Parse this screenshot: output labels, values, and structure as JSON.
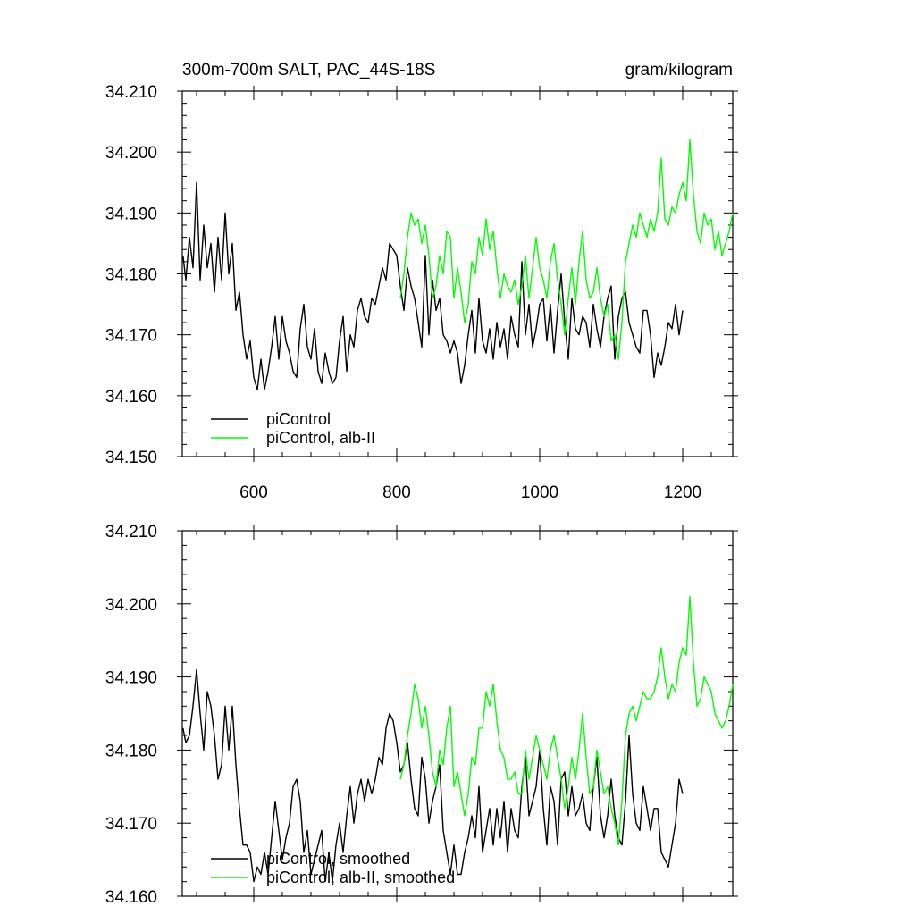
{
  "header": {
    "title": "300m-700m SALT, PAC_44S-18S",
    "units": "gram/kilogram"
  },
  "chart_data": [
    {
      "type": "line",
      "xlim": [
        500,
        1270
      ],
      "ylim": [
        34.15,
        34.21
      ],
      "x_ticks": [
        600,
        800,
        1000,
        1200
      ],
      "x_tick_labels": [
        "600",
        "800",
        "1000",
        "1200"
      ],
      "y_ticks": [
        34.15,
        34.16,
        34.17,
        34.18,
        34.19,
        34.2,
        34.21
      ],
      "y_tick_labels": [
        "34.150",
        "34.160",
        "34.170",
        "34.180",
        "34.190",
        "34.200",
        "34.210"
      ],
      "grid": false,
      "legend": "bottom-left",
      "series": [
        {
          "name": "piControl",
          "color": "#000000",
          "x": [
            501,
            505,
            510,
            515,
            520,
            525,
            530,
            535,
            540,
            545,
            550,
            555,
            560,
            565,
            570,
            575,
            580,
            585,
            590,
            595,
            600,
            605,
            610,
            615,
            620,
            625,
            630,
            635,
            640,
            645,
            650,
            655,
            660,
            665,
            670,
            675,
            680,
            685,
            690,
            695,
            700,
            705,
            710,
            715,
            720,
            725,
            730,
            735,
            740,
            745,
            750,
            755,
            760,
            765,
            770,
            775,
            780,
            785,
            790,
            795,
            800,
            805,
            810,
            815,
            820,
            825,
            830,
            835,
            840,
            845,
            850,
            855,
            860,
            865,
            870,
            875,
            880,
            885,
            890,
            895,
            900,
            905,
            910,
            915,
            920,
            925,
            930,
            935,
            940,
            945,
            950,
            955,
            960,
            965,
            970,
            975,
            980,
            985,
            990,
            995,
            1000,
            1005,
            1010,
            1015,
            1020,
            1025,
            1030,
            1035,
            1040,
            1045,
            1050,
            1055,
            1060,
            1065,
            1070,
            1075,
            1080,
            1085,
            1090,
            1095,
            1100,
            1105,
            1110,
            1115,
            1120,
            1125,
            1130,
            1135,
            1140,
            1145,
            1150,
            1155,
            1160,
            1165,
            1170,
            1175,
            1180,
            1185,
            1190,
            1195,
            1200
          ],
          "y": [
            34.183,
            34.179,
            34.186,
            34.181,
            34.195,
            34.179,
            34.188,
            34.181,
            34.185,
            34.177,
            34.186,
            34.179,
            34.19,
            34.18,
            34.185,
            34.174,
            34.177,
            34.17,
            34.166,
            34.169,
            34.163,
            34.161,
            34.166,
            34.161,
            34.164,
            34.168,
            34.173,
            34.166,
            34.173,
            34.169,
            34.167,
            34.164,
            34.163,
            34.171,
            34.175,
            34.168,
            34.166,
            34.171,
            34.164,
            34.162,
            34.167,
            34.164,
            34.162,
            34.163,
            34.169,
            34.173,
            34.164,
            34.17,
            34.168,
            34.174,
            34.176,
            34.173,
            34.172,
            34.176,
            34.175,
            34.178,
            34.181,
            34.179,
            34.185,
            34.184,
            34.183,
            34.178,
            34.174,
            34.181,
            34.178,
            34.176,
            34.172,
            34.168,
            34.183,
            34.17,
            34.179,
            34.174,
            34.176,
            34.17,
            34.169,
            34.167,
            34.169,
            34.167,
            34.162,
            34.165,
            34.17,
            34.174,
            34.167,
            34.176,
            34.169,
            34.167,
            34.171,
            34.166,
            34.172,
            34.168,
            34.171,
            34.166,
            34.173,
            34.17,
            34.168,
            34.182,
            34.17,
            34.175,
            34.168,
            34.171,
            34.175,
            34.176,
            34.169,
            34.175,
            34.167,
            34.174,
            34.18,
            34.172,
            34.166,
            34.176,
            34.171,
            34.17,
            34.173,
            34.172,
            34.168,
            34.175,
            34.171,
            34.168,
            34.173,
            34.176,
            34.178,
            34.166,
            34.173,
            34.176,
            34.177,
            34.172,
            34.17,
            34.168,
            34.167,
            34.174,
            34.174,
            34.17,
            34.163,
            34.167,
            34.165,
            34.168,
            34.172,
            34.171,
            34.175,
            34.17,
            34.174
          ],
          "label": "piControl"
        },
        {
          "name": "piControl, alb-II",
          "color": "#00ff00",
          "x": [
            805,
            810,
            815,
            820,
            825,
            830,
            835,
            840,
            845,
            850,
            855,
            860,
            865,
            870,
            875,
            880,
            885,
            890,
            895,
            900,
            905,
            910,
            915,
            920,
            925,
            930,
            935,
            940,
            945,
            950,
            955,
            960,
            965,
            970,
            975,
            980,
            985,
            990,
            995,
            1000,
            1005,
            1010,
            1015,
            1020,
            1025,
            1030,
            1035,
            1040,
            1045,
            1050,
            1055,
            1060,
            1065,
            1070,
            1075,
            1080,
            1085,
            1090,
            1095,
            1100,
            1105,
            1110,
            1115,
            1120,
            1125,
            1130,
            1135,
            1140,
            1145,
            1150,
            1155,
            1160,
            1165,
            1170,
            1175,
            1180,
            1185,
            1190,
            1195,
            1200,
            1205,
            1210,
            1215,
            1220,
            1225,
            1230,
            1235,
            1240,
            1245,
            1250,
            1255,
            1260,
            1265,
            1270
          ],
          "y": [
            34.176,
            34.18,
            34.186,
            34.19,
            34.188,
            34.189,
            34.185,
            34.188,
            34.183,
            34.176,
            34.178,
            34.183,
            34.18,
            34.187,
            34.186,
            34.176,
            34.181,
            34.177,
            34.172,
            34.175,
            34.182,
            34.18,
            34.186,
            34.183,
            34.189,
            34.184,
            34.187,
            34.181,
            34.176,
            34.18,
            34.178,
            34.177,
            34.179,
            34.175,
            34.178,
            34.183,
            34.176,
            34.181,
            34.186,
            34.181,
            34.179,
            34.176,
            34.182,
            34.185,
            34.179,
            34.175,
            34.17,
            34.176,
            34.181,
            34.175,
            34.182,
            34.187,
            34.179,
            34.176,
            34.177,
            34.181,
            34.176,
            34.173,
            34.175,
            34.169,
            34.17,
            34.166,
            34.172,
            34.182,
            34.185,
            34.188,
            34.186,
            34.19,
            34.188,
            34.186,
            34.189,
            34.187,
            34.19,
            34.199,
            34.189,
            34.188,
            34.191,
            34.19,
            34.193,
            34.195,
            34.192,
            34.202,
            34.193,
            34.187,
            34.185,
            34.19,
            34.188,
            34.189,
            34.184,
            34.187,
            34.183,
            34.185,
            34.187,
            34.19
          ],
          "label": "piControl, alb-II"
        }
      ]
    },
    {
      "type": "line",
      "xlim": [
        500,
        1270
      ],
      "ylim": [
        34.16,
        34.21
      ],
      "x_ticks": [
        600,
        800,
        1000,
        1200
      ],
      "y_ticks": [
        34.16,
        34.17,
        34.18,
        34.19,
        34.2,
        34.21
      ],
      "y_tick_labels": [
        "34.160",
        "34.170",
        "34.180",
        "34.190",
        "34.200",
        "34.210"
      ],
      "grid": false,
      "legend": "bottom-left",
      "series": [
        {
          "name": "piControl, smoothed",
          "color": "#000000",
          "x": [
            501,
            505,
            510,
            515,
            520,
            525,
            530,
            535,
            540,
            545,
            550,
            555,
            560,
            565,
            570,
            575,
            580,
            585,
            590,
            595,
            600,
            605,
            610,
            615,
            620,
            625,
            630,
            635,
            640,
            645,
            650,
            655,
            660,
            665,
            670,
            675,
            680,
            685,
            690,
            695,
            700,
            705,
            710,
            715,
            720,
            725,
            730,
            735,
            740,
            745,
            750,
            755,
            760,
            765,
            770,
            775,
            780,
            785,
            790,
            795,
            800,
            805,
            810,
            815,
            820,
            825,
            830,
            835,
            840,
            845,
            850,
            855,
            860,
            865,
            870,
            875,
            880,
            885,
            890,
            895,
            900,
            905,
            910,
            915,
            920,
            925,
            930,
            935,
            940,
            945,
            950,
            955,
            960,
            965,
            970,
            975,
            980,
            985,
            990,
            995,
            1000,
            1005,
            1010,
            1015,
            1020,
            1025,
            1030,
            1035,
            1040,
            1045,
            1050,
            1055,
            1060,
            1065,
            1070,
            1075,
            1080,
            1085,
            1090,
            1095,
            1100,
            1105,
            1110,
            1115,
            1120,
            1125,
            1130,
            1135,
            1140,
            1145,
            1150,
            1155,
            1160,
            1165,
            1170,
            1175,
            1180,
            1185,
            1190,
            1195,
            1200
          ],
          "y": [
            34.183,
            34.181,
            34.182,
            34.186,
            34.191,
            34.185,
            34.18,
            34.188,
            34.186,
            34.182,
            34.176,
            34.178,
            34.186,
            34.18,
            34.186,
            34.178,
            34.172,
            34.167,
            34.167,
            34.166,
            34.162,
            34.164,
            34.163,
            34.166,
            34.163,
            34.168,
            34.173,
            34.169,
            34.165,
            34.168,
            34.17,
            34.175,
            34.176,
            34.173,
            34.166,
            34.169,
            34.163,
            34.165,
            34.167,
            34.169,
            34.162,
            34.166,
            34.162,
            34.167,
            34.17,
            34.166,
            34.171,
            34.175,
            34.17,
            34.174,
            34.176,
            34.173,
            34.176,
            34.174,
            34.176,
            34.179,
            34.178,
            34.183,
            34.185,
            34.184,
            34.181,
            34.177,
            34.178,
            34.181,
            34.176,
            34.172,
            34.171,
            34.179,
            34.176,
            34.17,
            34.173,
            34.175,
            34.178,
            34.169,
            34.166,
            34.163,
            34.167,
            34.163,
            34.163,
            34.166,
            34.168,
            34.171,
            34.168,
            34.175,
            34.166,
            34.169,
            34.172,
            34.167,
            34.172,
            34.168,
            34.173,
            34.166,
            34.172,
            34.169,
            34.168,
            34.175,
            34.179,
            34.171,
            34.173,
            34.175,
            34.18,
            34.172,
            34.167,
            34.175,
            34.173,
            34.167,
            34.176,
            34.177,
            34.171,
            34.175,
            34.171,
            34.172,
            34.174,
            34.17,
            34.169,
            34.175,
            34.179,
            34.171,
            34.168,
            34.171,
            34.176,
            34.171,
            34.168,
            34.167,
            34.173,
            34.182,
            34.174,
            34.17,
            34.169,
            34.175,
            34.172,
            34.169,
            34.172,
            34.172,
            34.166,
            34.165,
            34.164,
            34.167,
            34.17,
            34.176,
            34.174
          ],
          "label": "piControl, smoothed"
        },
        {
          "name": "piControl, alb-II, smoothed",
          "color": "#00ff00",
          "x": [
            805,
            810,
            815,
            820,
            825,
            830,
            835,
            840,
            845,
            850,
            855,
            860,
            865,
            870,
            875,
            880,
            885,
            890,
            895,
            900,
            905,
            910,
            915,
            920,
            925,
            930,
            935,
            940,
            945,
            950,
            955,
            960,
            965,
            970,
            975,
            980,
            985,
            990,
            995,
            1000,
            1005,
            1010,
            1015,
            1020,
            1025,
            1030,
            1035,
            1040,
            1045,
            1050,
            1055,
            1060,
            1065,
            1070,
            1075,
            1080,
            1085,
            1090,
            1095,
            1100,
            1105,
            1110,
            1115,
            1120,
            1125,
            1130,
            1135,
            1140,
            1145,
            1150,
            1155,
            1160,
            1165,
            1170,
            1175,
            1180,
            1185,
            1190,
            1195,
            1200,
            1205,
            1210,
            1215,
            1220,
            1225,
            1230,
            1235,
            1240,
            1245,
            1250,
            1255,
            1260,
            1265,
            1270
          ],
          "y": [
            34.176,
            34.178,
            34.182,
            34.185,
            34.189,
            34.187,
            34.183,
            34.186,
            34.182,
            34.177,
            34.175,
            34.18,
            34.178,
            34.183,
            34.186,
            34.175,
            34.177,
            34.174,
            34.171,
            34.174,
            34.179,
            34.178,
            34.183,
            34.183,
            34.188,
            34.186,
            34.189,
            34.184,
            34.18,
            34.179,
            34.176,
            34.176,
            34.177,
            34.174,
            34.174,
            34.18,
            34.176,
            34.179,
            34.182,
            34.18,
            34.178,
            34.176,
            34.18,
            34.182,
            34.179,
            34.176,
            34.172,
            34.175,
            34.179,
            34.176,
            34.18,
            34.185,
            34.179,
            34.174,
            34.175,
            34.18,
            34.177,
            34.174,
            34.175,
            34.172,
            34.17,
            34.167,
            34.173,
            34.182,
            34.185,
            34.186,
            34.184,
            34.186,
            34.188,
            34.187,
            34.187,
            34.188,
            34.19,
            34.194,
            34.19,
            34.187,
            34.189,
            34.188,
            34.192,
            34.194,
            34.193,
            34.201,
            34.192,
            34.186,
            34.187,
            34.19,
            34.189,
            34.188,
            34.185,
            34.184,
            34.183,
            34.184,
            34.186,
            34.189
          ],
          "label": "piControl, alb-II, smoothed"
        }
      ]
    }
  ]
}
